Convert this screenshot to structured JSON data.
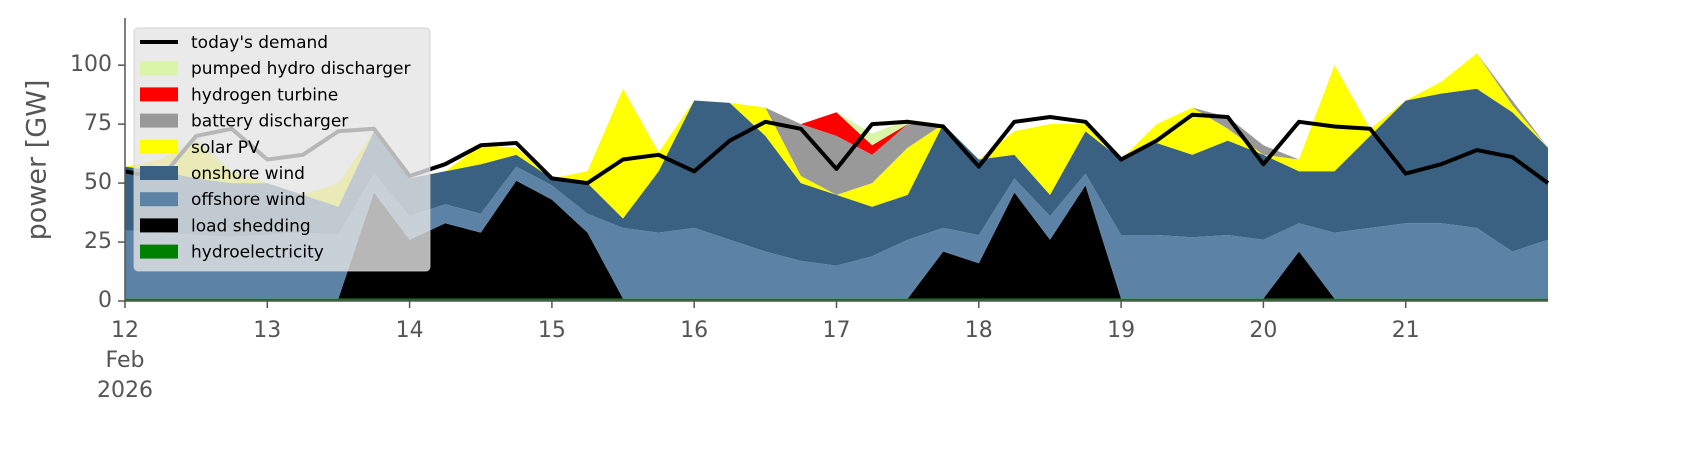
{
  "chart_data": {
    "type": "stacked-area",
    "ylabel": "power [GW]",
    "legend": "upper left",
    "x": [
      12,
      12.25,
      12.5,
      12.75,
      13,
      13.25,
      13.5,
      13.75,
      14,
      14.25,
      14.5,
      14.75,
      15,
      15.25,
      15.5,
      15.75,
      16,
      16.25,
      16.5,
      16.75,
      17,
      17.25,
      17.5,
      17.75,
      18,
      18.25,
      18.5,
      18.75,
      19,
      19.25,
      19.5,
      19.75,
      20,
      20.25,
      20.5,
      20.75,
      21,
      21.25,
      21.5,
      21.75,
      22
    ],
    "xlim": [
      12,
      22
    ],
    "xticks": [
      {
        "value": 12,
        "label": "12\nFeb\n2026"
      },
      13,
      14,
      15,
      16,
      17,
      18,
      19,
      20,
      21
    ],
    "ylim": [
      0,
      120
    ],
    "yticks": [
      0,
      25,
      50,
      75,
      100
    ],
    "series": [
      {
        "name": "today's demand",
        "type": "line",
        "color": "#000000",
        "values": [
          55,
          52,
          70,
          73,
          60,
          62,
          72,
          73,
          53,
          58,
          66,
          67,
          52,
          50,
          60,
          62,
          55,
          68,
          76,
          73,
          56,
          75,
          76,
          74,
          57,
          76,
          78,
          76,
          60,
          68,
          79,
          78,
          58,
          76,
          74,
          73,
          54,
          58,
          64,
          61,
          50
        ]
      },
      {
        "name": "pumped hydro discharger",
        "type": "area",
        "color": "#d9f5a8",
        "values": [
          0,
          0,
          3,
          0,
          0,
          0,
          0,
          0,
          0,
          0,
          0,
          0,
          0,
          0,
          0,
          0,
          0,
          0,
          0,
          0,
          0,
          5,
          2,
          0,
          0,
          0,
          0,
          0,
          0,
          0,
          0,
          0,
          0,
          0,
          0,
          0,
          0,
          0,
          0,
          0,
          0
        ]
      },
      {
        "name": "hydrogen turbine",
        "type": "area",
        "color": "#ff0000",
        "values": [
          0,
          0,
          0,
          0,
          0,
          0,
          0,
          0,
          0,
          0,
          0,
          0,
          0,
          0,
          0,
          0,
          0,
          0,
          0,
          0,
          10,
          4,
          0,
          0,
          0,
          0,
          0,
          0,
          0,
          0,
          0,
          0,
          0,
          0,
          0,
          0,
          0,
          0,
          0,
          0,
          0
        ]
      },
      {
        "name": "battery discharger",
        "type": "area",
        "color": "#999999",
        "values": [
          0,
          0,
          0,
          0,
          0,
          0,
          0,
          0,
          0,
          0,
          0,
          0,
          0,
          0,
          0,
          0,
          0,
          0,
          0,
          22,
          25,
          12,
          10,
          0,
          0,
          0,
          0,
          0,
          0,
          0,
          0,
          5,
          4,
          0,
          0,
          0,
          0,
          0,
          0,
          2,
          0
        ]
      },
      {
        "name": "solar PV",
        "type": "area",
        "color": "#ffff00",
        "values": [
          0,
          5,
          15,
          5,
          0,
          0,
          10,
          0,
          0,
          0,
          8,
          3,
          0,
          5,
          55,
          8,
          0,
          0,
          12,
          3,
          0,
          10,
          20,
          0,
          0,
          10,
          30,
          3,
          0,
          8,
          20,
          5,
          0,
          5,
          45,
          3,
          0,
          5,
          15,
          3,
          0
        ]
      },
      {
        "name": "onshore wind",
        "type": "area",
        "color": "#3b6182",
        "values": [
          27,
          26,
          24,
          23,
          22,
          16,
          12,
          18,
          16,
          14,
          21,
          5,
          3,
          13,
          4,
          26,
          54,
          58,
          49,
          33,
          30,
          21,
          19,
          44,
          32,
          10,
          9,
          18,
          32,
          39,
          35,
          40,
          36,
          22,
          26,
          39,
          52,
          55,
          59,
          59,
          39
        ]
      },
      {
        "name": "offshore wind",
        "type": "area",
        "color": "#5c83a5",
        "values": [
          29,
          28,
          27,
          26,
          27,
          28,
          27,
          8,
          10,
          8,
          8,
          6,
          6,
          8,
          30,
          28,
          30,
          25,
          20,
          16,
          14,
          18,
          25,
          10,
          12,
          6,
          10,
          5,
          27,
          27,
          26,
          27,
          25,
          12,
          28,
          30,
          32,
          32,
          30,
          20,
          25
        ]
      },
      {
        "name": "load shedding",
        "type": "area",
        "color": "#000000",
        "values": [
          0,
          0,
          0,
          0,
          0,
          0,
          0,
          45,
          25,
          32,
          28,
          50,
          42,
          28,
          0,
          0,
          0,
          0,
          0,
          0,
          0,
          0,
          0,
          20,
          15,
          45,
          25,
          48,
          0,
          0,
          0,
          0,
          0,
          20,
          0,
          0,
          0,
          0,
          0,
          0,
          0
        ]
      },
      {
        "name": "hydroelectricity",
        "type": "area",
        "color": "#008000",
        "values": [
          1,
          1,
          1,
          1,
          1,
          1,
          1,
          1,
          1,
          1,
          1,
          1,
          1,
          1,
          1,
          1,
          1,
          1,
          1,
          1,
          1,
          1,
          1,
          1,
          1,
          1,
          1,
          1,
          1,
          1,
          1,
          1,
          1,
          1,
          1,
          1,
          1,
          1,
          1,
          1,
          1
        ]
      }
    ]
  }
}
